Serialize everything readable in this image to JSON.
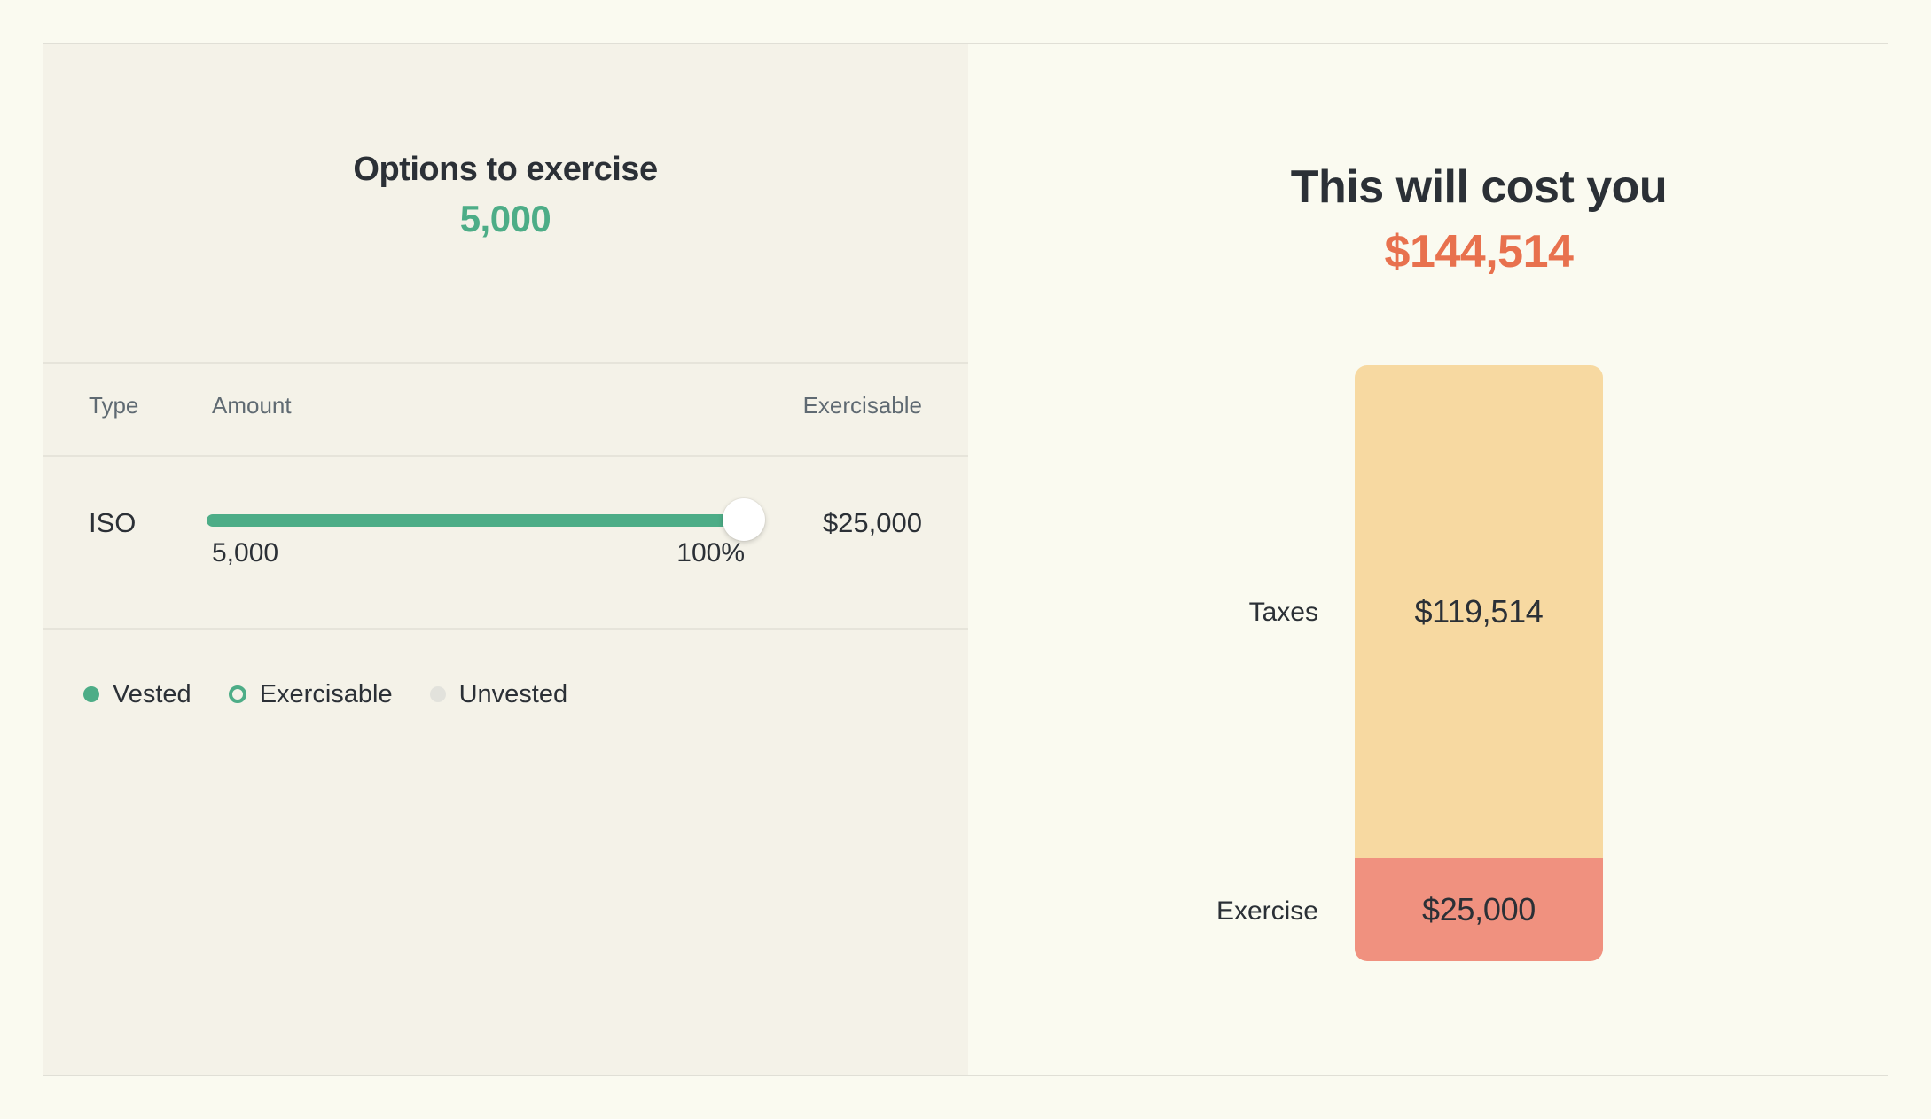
{
  "colors": {
    "page_bg": "#fafaf0",
    "panel_bg": "#f4f2e8",
    "frame_border": "#e0dfd6",
    "divider": "#e6e4da",
    "text_dark": "#2b3036",
    "text_gray": "#5f6a72",
    "green": "#4dad87",
    "coral": "#e8714e",
    "bar_yellow": "#f7d9a1",
    "bar_salmon": "#f0917f",
    "unvested_gray": "#e2e2dc"
  },
  "left_panel": {
    "title": "Options to exercise",
    "value": "5,000",
    "table": {
      "headers": [
        "Type",
        "Amount",
        "Exercisable"
      ],
      "row": {
        "type": "ISO",
        "slider_value_label": "5,000",
        "slider_percent_label": "100%",
        "slider_percent": 100,
        "exercisable": "$25,000"
      }
    },
    "legend": [
      {
        "label": "Vested",
        "style": "filled-green"
      },
      {
        "label": "Exercisable",
        "style": "hollow-green"
      },
      {
        "label": "Unvested",
        "style": "filled-gray"
      }
    ]
  },
  "right_panel": {
    "title": "This will cost you",
    "total": "$144,514",
    "taxes_label": "Taxes",
    "taxes_value": "$119,514",
    "exercise_label": "Exercise",
    "exercise_value": "$25,000"
  },
  "chart_data": {
    "type": "bar",
    "subtype": "single-stacked-column",
    "title": "This will cost you",
    "total": 144514,
    "total_label": "$144,514",
    "categories": [
      "Taxes",
      "Exercise"
    ],
    "values": [
      119514,
      25000
    ],
    "value_labels": [
      "$119,514",
      "$25,000"
    ],
    "segments": [
      {
        "label": "Taxes",
        "value": 119514,
        "color": "#f7d9a1"
      },
      {
        "label": "Exercise",
        "value": 25000,
        "color": "#f0917f"
      }
    ],
    "legend_position": "left-of-bar",
    "grid": false
  }
}
